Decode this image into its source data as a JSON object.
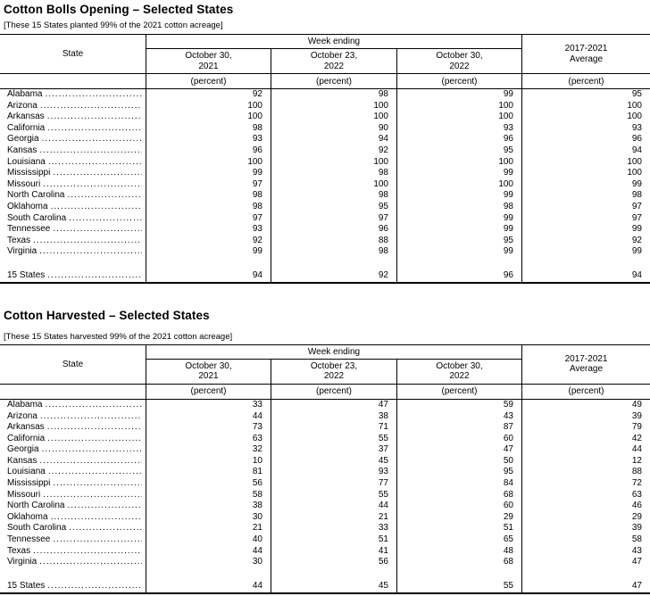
{
  "page": {
    "background": "#ffffff",
    "text_color": "#000000",
    "rule_color": "#000000"
  },
  "tables": [
    {
      "title": "Cotton Bolls Opening – Selected States",
      "note": "[These 15 States planted 99% of the 2021 cotton acreage]",
      "header": {
        "state": "State",
        "week_ending": "Week ending",
        "col1": "October 30,\n2021",
        "col2": "October 23,\n2022",
        "col3": "October 30,\n2022",
        "average": "2017-2021\nAverage",
        "unit": "(percent)"
      },
      "rows": [
        {
          "state": "Alabama",
          "c1": 92,
          "c2": 98,
          "c3": 99,
          "avg": 95
        },
        {
          "state": "Arizona",
          "c1": 100,
          "c2": 100,
          "c3": 100,
          "avg": 100
        },
        {
          "state": "Arkansas",
          "c1": 100,
          "c2": 100,
          "c3": 100,
          "avg": 100
        },
        {
          "state": "California",
          "c1": 98,
          "c2": 90,
          "c3": 93,
          "avg": 93
        },
        {
          "state": "Georgia",
          "c1": 93,
          "c2": 94,
          "c3": 96,
          "avg": 96
        },
        {
          "state": "Kansas",
          "c1": 96,
          "c2": 92,
          "c3": 95,
          "avg": 94
        },
        {
          "state": "Louisiana",
          "c1": 100,
          "c2": 100,
          "c3": 100,
          "avg": 100
        },
        {
          "state": "Mississippi",
          "c1": 99,
          "c2": 98,
          "c3": 99,
          "avg": 100
        },
        {
          "state": "Missouri",
          "c1": 97,
          "c2": 100,
          "c3": 100,
          "avg": 99
        },
        {
          "state": "North Carolina",
          "c1": 98,
          "c2": 98,
          "c3": 99,
          "avg": 98
        },
        {
          "state": "Oklahoma",
          "c1": 98,
          "c2": 95,
          "c3": 98,
          "avg": 97
        },
        {
          "state": "South Carolina",
          "c1": 97,
          "c2": 97,
          "c3": 99,
          "avg": 97
        },
        {
          "state": "Tennessee",
          "c1": 93,
          "c2": 96,
          "c3": 99,
          "avg": 99
        },
        {
          "state": "Texas",
          "c1": 92,
          "c2": 88,
          "c3": 95,
          "avg": 92
        },
        {
          "state": "Virginia",
          "c1": 99,
          "c2": 98,
          "c3": 99,
          "avg": 99
        }
      ],
      "total": {
        "state": "15 States",
        "c1": 94,
        "c2": 92,
        "c3": 96,
        "avg": 94
      }
    },
    {
      "title": "Cotton Harvested – Selected States",
      "note": "[These 15 States harvested 99% of the 2021 cotton acreage]",
      "header": {
        "state": "State",
        "week_ending": "Week ending",
        "col1": "October 30,\n2021",
        "col2": "October 23,\n2022",
        "col3": "October 30,\n2022",
        "average": "2017-2021\nAverage",
        "unit": "(percent)"
      },
      "rows": [
        {
          "state": "Alabama",
          "c1": 33,
          "c2": 47,
          "c3": 59,
          "avg": 49
        },
        {
          "state": "Arizona",
          "c1": 44,
          "c2": 38,
          "c3": 43,
          "avg": 39
        },
        {
          "state": "Arkansas",
          "c1": 73,
          "c2": 71,
          "c3": 87,
          "avg": 79
        },
        {
          "state": "California",
          "c1": 63,
          "c2": 55,
          "c3": 60,
          "avg": 42
        },
        {
          "state": "Georgia",
          "c1": 32,
          "c2": 37,
          "c3": 47,
          "avg": 44
        },
        {
          "state": "Kansas",
          "c1": 10,
          "c2": 45,
          "c3": 50,
          "avg": 12
        },
        {
          "state": "Louisiana",
          "c1": 81,
          "c2": 93,
          "c3": 95,
          "avg": 88
        },
        {
          "state": "Mississippi",
          "c1": 56,
          "c2": 77,
          "c3": 84,
          "avg": 72
        },
        {
          "state": "Missouri",
          "c1": 58,
          "c2": 55,
          "c3": 68,
          "avg": 63
        },
        {
          "state": "North Carolina",
          "c1": 38,
          "c2": 44,
          "c3": 60,
          "avg": 46
        },
        {
          "state": "Oklahoma",
          "c1": 30,
          "c2": 21,
          "c3": 29,
          "avg": 29
        },
        {
          "state": "South Carolina",
          "c1": 21,
          "c2": 33,
          "c3": 51,
          "avg": 39
        },
        {
          "state": "Tennessee",
          "c1": 40,
          "c2": 51,
          "c3": 65,
          "avg": 58
        },
        {
          "state": "Texas",
          "c1": 44,
          "c2": 41,
          "c3": 48,
          "avg": 43
        },
        {
          "state": "Virginia",
          "c1": 30,
          "c2": 56,
          "c3": 68,
          "avg": 47
        }
      ],
      "total": {
        "state": "15 States",
        "c1": 44,
        "c2": 45,
        "c3": 55,
        "avg": 47
      }
    }
  ]
}
